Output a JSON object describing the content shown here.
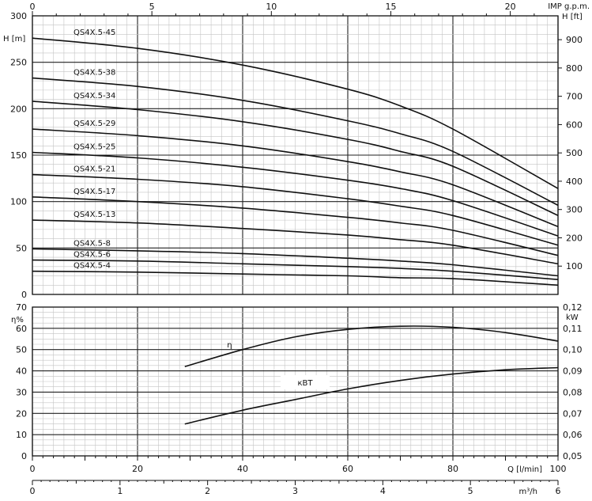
{
  "chart_data": [
    {
      "type": "line",
      "xlabel": "Q [l/min]",
      "ylabel": "H [m]",
      "ylabel_right": "H [ft]",
      "top_axis_label": "IMP g.p.m.",
      "xlim": [
        0,
        100
      ],
      "ylim": [
        0,
        300
      ],
      "ylim_right": [
        0,
        984
      ],
      "grid": true,
      "x_ticks": [
        "0",
        "20",
        "40",
        "60",
        "80",
        "100"
      ],
      "y_ticks": [
        "0",
        "50",
        "100",
        "150",
        "200",
        "250",
        "300"
      ],
      "y_right_ticks": [
        "100",
        "200",
        "300",
        "400",
        "500",
        "600",
        "700",
        "800",
        "900"
      ],
      "top_ticks": [
        "0",
        "5",
        "10",
        "15",
        "20"
      ],
      "series": [
        {
          "name": "QS4X.5-45",
          "x": [
            0,
            20,
            40,
            60,
            70,
            80,
            100
          ],
          "y": [
            276,
            265,
            247,
            221,
            203,
            178,
            114
          ]
        },
        {
          "name": "QS4X.5-38",
          "x": [
            0,
            20,
            40,
            60,
            70,
            80,
            100
          ],
          "y": [
            233,
            224,
            209,
            187,
            173,
            154,
            96
          ]
        },
        {
          "name": "QS4X.5-34",
          "x": [
            0,
            20,
            40,
            60,
            70,
            80,
            100
          ],
          "y": [
            208,
            199,
            186,
            167,
            154,
            138,
            85
          ]
        },
        {
          "name": "QS4X.5-29",
          "x": [
            0,
            20,
            40,
            60,
            70,
            80,
            100
          ],
          "y": [
            178,
            171,
            160,
            143,
            132,
            118,
            73
          ]
        },
        {
          "name": "QS4X.5-25",
          "x": [
            0,
            20,
            40,
            60,
            70,
            80,
            100
          ],
          "y": [
            153,
            147,
            137,
            123,
            114,
            101,
            63
          ]
        },
        {
          "name": "QS4X.5-21",
          "x": [
            0,
            20,
            40,
            60,
            70,
            80,
            100
          ],
          "y": [
            129,
            124,
            116,
            103,
            95,
            85,
            53
          ]
        },
        {
          "name": "QS4X.5-17",
          "x": [
            0,
            20,
            40,
            60,
            70,
            80,
            100
          ],
          "y": [
            105,
            100,
            93,
            83,
            77,
            69,
            42
          ]
        },
        {
          "name": "QS4X.5-13",
          "x": [
            0,
            20,
            40,
            60,
            70,
            80,
            100
          ],
          "y": [
            80,
            77,
            71,
            64,
            59,
            53,
            33
          ]
        },
        {
          "name": "QS4X.5-8",
          "x": [
            0,
            20,
            40,
            60,
            70,
            80,
            100
          ],
          "y": [
            49,
            47,
            44,
            39,
            36,
            32,
            20
          ]
        },
        {
          "name": "QS4X.5-6",
          "x": [
            0,
            20,
            40,
            60,
            70,
            80,
            100
          ],
          "y": [
            37,
            36,
            33,
            30,
            28,
            25,
            16
          ]
        },
        {
          "name": "QS4X.5-4",
          "x": [
            0,
            20,
            40,
            60,
            70,
            80,
            100
          ],
          "y": [
            25,
            24,
            22,
            20,
            18,
            17,
            10
          ]
        }
      ]
    },
    {
      "type": "line",
      "ylabel": "η%",
      "ylabel_right": "kW",
      "xlim": [
        0,
        100
      ],
      "ylim": [
        0,
        70
      ],
      "ylim_right": [
        0.05,
        0.12
      ],
      "grid": true,
      "x_ticks": [
        "0",
        "20",
        "40",
        "60",
        "80",
        "100"
      ],
      "y_ticks": [
        "0",
        "10",
        "20",
        "30",
        "40",
        "50",
        "60",
        "70"
      ],
      "y_right_ticks": [
        "0,05",
        "0,06",
        "0,07",
        "0,08",
        "0,09",
        "0,10",
        "0,11",
        "0,12"
      ],
      "bottom_axis_label": "m³/h",
      "bottom_ticks": [
        "0",
        "1",
        "2",
        "3",
        "4",
        "5",
        "6"
      ],
      "series": [
        {
          "name": "η",
          "axis": "left",
          "x": [
            29,
            40,
            50,
            60,
            70,
            80,
            90,
            100
          ],
          "y": [
            42,
            50,
            56,
            59.5,
            61,
            60.5,
            58,
            54
          ]
        },
        {
          "name": "кВТ",
          "axis": "right",
          "x": [
            29,
            40,
            50,
            60,
            70,
            80,
            90,
            100
          ],
          "y": [
            0.065,
            0.0715,
            0.0765,
            0.0815,
            0.0855,
            0.0885,
            0.0905,
            0.0915
          ]
        }
      ]
    }
  ]
}
